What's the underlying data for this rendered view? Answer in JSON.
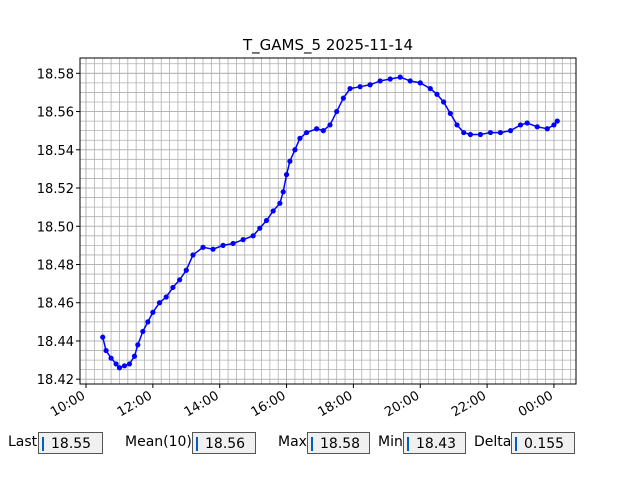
{
  "chart_data": {
    "type": "line",
    "title": "T_GAMS_5 2025-11-14",
    "color": "#0000ff",
    "grid": true,
    "x": [
      10.5,
      10.6,
      10.75,
      10.9,
      11.0,
      11.15,
      11.3,
      11.45,
      11.55,
      11.7,
      11.85,
      12.0,
      12.2,
      12.4,
      12.6,
      12.8,
      13.0,
      13.2,
      13.5,
      13.8,
      14.1,
      14.4,
      14.7,
      15.0,
      15.2,
      15.4,
      15.6,
      15.8,
      15.9,
      16.0,
      16.1,
      16.25,
      16.4,
      16.6,
      16.9,
      17.1,
      17.3,
      17.5,
      17.7,
      17.9,
      18.2,
      18.5,
      18.8,
      19.1,
      19.4,
      19.7,
      20.0,
      20.3,
      20.5,
      20.7,
      20.9,
      21.1,
      21.3,
      21.5,
      21.8,
      22.1,
      22.4,
      22.7,
      23.0,
      23.2,
      23.5,
      23.8,
      24.0,
      24.1
    ],
    "values": [
      18.442,
      18.435,
      18.431,
      18.428,
      18.426,
      18.427,
      18.428,
      18.432,
      18.438,
      18.445,
      18.45,
      18.455,
      18.46,
      18.463,
      18.468,
      18.472,
      18.477,
      18.485,
      18.489,
      18.488,
      18.49,
      18.491,
      18.493,
      18.495,
      18.499,
      18.503,
      18.508,
      18.512,
      18.518,
      18.527,
      18.534,
      18.54,
      18.546,
      18.549,
      18.551,
      18.55,
      18.553,
      18.56,
      18.567,
      18.572,
      18.573,
      18.574,
      18.576,
      18.577,
      18.578,
      18.576,
      18.575,
      18.572,
      18.569,
      18.565,
      18.559,
      18.553,
      18.549,
      18.548,
      18.548,
      18.549,
      18.549,
      18.55,
      18.553,
      18.554,
      18.552,
      18.551,
      18.553,
      18.555
    ],
    "xlim": [
      9.82,
      24.66
    ],
    "xticks": [
      {
        "value": 10,
        "label": "10:00"
      },
      {
        "value": 12,
        "label": "12:00"
      },
      {
        "value": 14,
        "label": "14:00"
      },
      {
        "value": 16,
        "label": "16:00"
      },
      {
        "value": 18,
        "label": "18:00"
      },
      {
        "value": 20,
        "label": "20:00"
      },
      {
        "value": 22,
        "label": "22:00"
      },
      {
        "value": 24,
        "label": "00:00"
      }
    ],
    "ylim": [
      18.4175,
      18.588
    ],
    "yticks": [
      {
        "value": 18.42,
        "label": "18.42"
      },
      {
        "value": 18.44,
        "label": "18.44"
      },
      {
        "value": 18.46,
        "label": "18.46"
      },
      {
        "value": 18.48,
        "label": "18.48"
      },
      {
        "value": 18.5,
        "label": "18.50"
      },
      {
        "value": 18.52,
        "label": "18.52"
      },
      {
        "value": 18.54,
        "label": "18.54"
      },
      {
        "value": 18.56,
        "label": "18.56"
      },
      {
        "value": 18.58,
        "label": "18.58"
      }
    ]
  },
  "fields": [
    {
      "label": "Last",
      "value": 18.55
    },
    {
      "label": "Mean(10)",
      "value": 18.56
    },
    {
      "label": "Max",
      "value": 18.58
    },
    {
      "label": "Min",
      "value": 18.43
    },
    {
      "label": "Delta",
      "value": 0.155
    }
  ]
}
